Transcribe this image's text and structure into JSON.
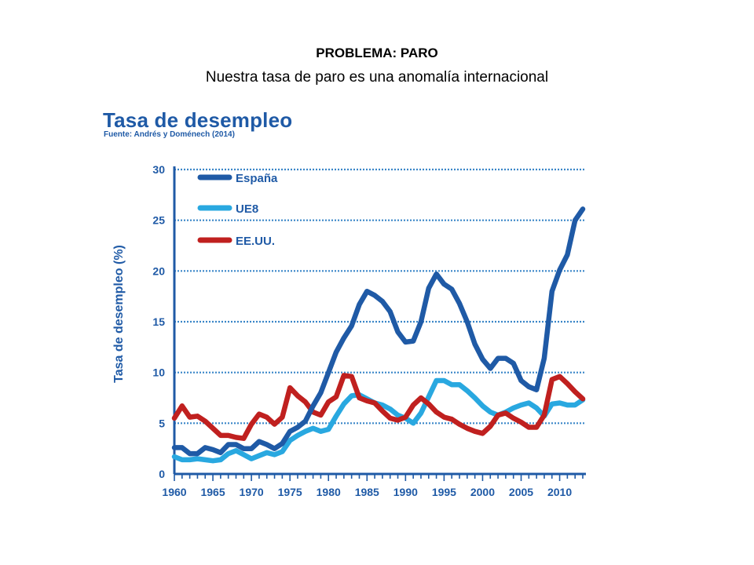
{
  "slide": {
    "title": "PROBLEMA: PARO",
    "subtitle": "Nuestra tasa de paro es una anomalía internacional"
  },
  "chart_data": {
    "type": "line",
    "title": "Tasa de desempleo",
    "subtitle": "Fuente: Andrés y Doménech (2014)",
    "xlabel": "",
    "ylabel": "Tasa de desempleo (%)",
    "xlim": [
      1960,
      2013
    ],
    "ylim": [
      0,
      30
    ],
    "x_ticks": [
      1960,
      1965,
      1970,
      1975,
      1980,
      1985,
      1990,
      1995,
      2000,
      2005,
      2010
    ],
    "y_ticks": [
      0,
      5,
      10,
      15,
      20,
      25,
      30
    ],
    "grid": true,
    "legend_position": "top-left",
    "x": [
      1960,
      1961,
      1962,
      1963,
      1964,
      1965,
      1966,
      1967,
      1968,
      1969,
      1970,
      1971,
      1972,
      1973,
      1974,
      1975,
      1976,
      1977,
      1978,
      1979,
      1980,
      1981,
      1982,
      1983,
      1984,
      1985,
      1986,
      1987,
      1988,
      1989,
      1990,
      1991,
      1992,
      1993,
      1994,
      1995,
      1996,
      1997,
      1998,
      1999,
      2000,
      2001,
      2002,
      2003,
      2004,
      2005,
      2006,
      2007,
      2008,
      2009,
      2010,
      2011,
      2012,
      2013
    ],
    "series": [
      {
        "name": "España",
        "color": "#1f5aa6",
        "values": [
          2.6,
          2.6,
          2.0,
          2.0,
          2.6,
          2.4,
          2.1,
          2.9,
          2.9,
          2.5,
          2.5,
          3.2,
          2.9,
          2.5,
          3.0,
          4.2,
          4.6,
          5.2,
          6.7,
          8.0,
          10.0,
          12.0,
          13.4,
          14.6,
          16.7,
          18.0,
          17.6,
          17.0,
          16.0,
          14.0,
          13.0,
          13.1,
          15.0,
          18.3,
          19.7,
          18.7,
          18.2,
          16.8,
          15.0,
          12.8,
          11.3,
          10.4,
          11.4,
          11.4,
          10.9,
          9.2,
          8.6,
          8.3,
          11.4,
          18.0,
          20.1,
          21.6,
          25.0,
          26.1
        ]
      },
      {
        "name": "UE8",
        "color": "#29a8e0",
        "values": [
          1.7,
          1.4,
          1.4,
          1.5,
          1.4,
          1.3,
          1.4,
          2.0,
          2.3,
          1.9,
          1.5,
          1.8,
          2.1,
          1.9,
          2.2,
          3.3,
          3.8,
          4.2,
          4.5,
          4.2,
          4.4,
          5.7,
          6.9,
          7.7,
          7.8,
          7.4,
          7.0,
          6.8,
          6.4,
          5.8,
          5.5,
          5.0,
          6.0,
          7.6,
          9.2,
          9.2,
          8.8,
          8.8,
          8.2,
          7.5,
          6.7,
          6.1,
          5.8,
          6.1,
          6.5,
          6.8,
          7.0,
          6.5,
          5.7,
          6.9,
          7.0,
          6.8,
          6.8,
          7.3
        ]
      },
      {
        "name": "EE.UU.",
        "color": "#c0201f",
        "values": [
          5.5,
          6.7,
          5.6,
          5.7,
          5.2,
          4.5,
          3.8,
          3.8,
          3.6,
          3.5,
          4.9,
          5.9,
          5.6,
          4.9,
          5.6,
          8.5,
          7.7,
          7.1,
          6.1,
          5.8,
          7.1,
          7.6,
          9.7,
          9.6,
          7.5,
          7.2,
          7.0,
          6.2,
          5.5,
          5.3,
          5.6,
          6.8,
          7.5,
          6.9,
          6.1,
          5.6,
          5.4,
          4.9,
          4.5,
          4.2,
          4.0,
          4.7,
          5.8,
          6.0,
          5.5,
          5.1,
          4.6,
          4.6,
          5.8,
          9.3,
          9.6,
          8.9,
          8.1,
          7.4
        ]
      }
    ]
  }
}
